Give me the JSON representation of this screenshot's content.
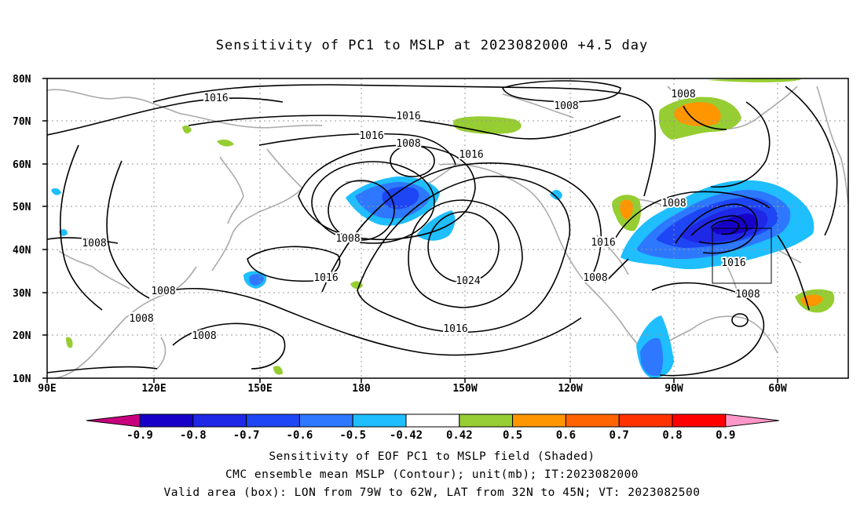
{
  "title": "Sensitivity of PC1 to MSLP at 2023082000 +4.5 day",
  "map": {
    "lat_labels": [
      "80N",
      "70N",
      "60N",
      "50N",
      "40N",
      "30N",
      "20N",
      "10N"
    ],
    "lon_labels": [
      "90E",
      "120E",
      "150E",
      "180",
      "150W",
      "120W",
      "90W",
      "60W"
    ],
    "contour_labels": [
      "1016",
      "1008",
      "1016",
      "1016",
      "1008",
      "1016",
      "1008",
      "1016",
      "1024",
      "1016",
      "1008",
      "1008",
      "1008",
      "1016",
      "1008",
      "1016",
      "1008",
      "1008"
    ]
  },
  "colorbar": {
    "labels": [
      "-0.9",
      "-0.8",
      "-0.7",
      "-0.6",
      "-0.5",
      "-0.42",
      "0.42",
      "0.5",
      "0.6",
      "0.7",
      "0.8",
      "0.9"
    ],
    "colors": [
      "#c8007d",
      "#1700c8",
      "#1e28e6",
      "#1e46f5",
      "#2d78ff",
      "#1ebeff",
      "#ffffff",
      "#96cd32",
      "#ff9600",
      "#ff6400",
      "#ff3200",
      "#ff0000",
      "#ff96c8"
    ]
  },
  "caption": {
    "line1": "Sensitivity of EOF PC1 to MSLP field (Shaded)",
    "line2": "CMC ensemble mean MSLP (Contour); unit(mb); IT:2023082000",
    "line3": "Valid area (box): LON from 79W to 62W, LAT from 32N to 45N; VT: 2023082500"
  }
}
